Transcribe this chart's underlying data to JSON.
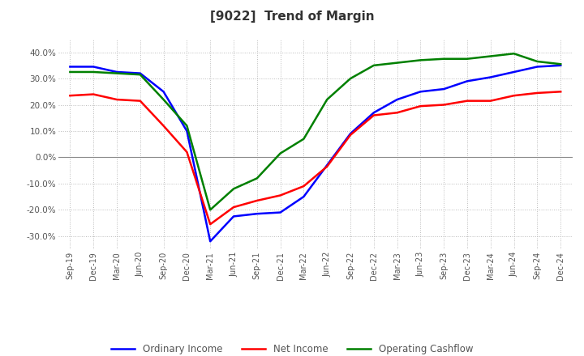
{
  "title": "[9022]  Trend of Margin",
  "x_labels": [
    "Sep-19",
    "Dec-19",
    "Mar-20",
    "Jun-20",
    "Sep-20",
    "Dec-20",
    "Mar-21",
    "Jun-21",
    "Sep-21",
    "Dec-21",
    "Mar-22",
    "Jun-22",
    "Sep-22",
    "Dec-22",
    "Mar-23",
    "Jun-23",
    "Sep-23",
    "Dec-23",
    "Mar-24",
    "Jun-24",
    "Sep-24",
    "Dec-24"
  ],
  "ordinary_income": [
    34.5,
    34.5,
    32.5,
    32.0,
    25.0,
    10.0,
    -32.0,
    -22.5,
    -21.5,
    -21.0,
    -15.0,
    -3.0,
    9.0,
    17.0,
    22.0,
    25.0,
    26.0,
    29.0,
    30.5,
    32.5,
    34.5,
    35.0
  ],
  "net_income": [
    23.5,
    24.0,
    22.0,
    21.5,
    12.0,
    2.0,
    -25.5,
    -19.0,
    -16.5,
    -14.5,
    -11.0,
    -3.5,
    8.5,
    16.0,
    17.0,
    19.5,
    20.0,
    21.5,
    21.5,
    23.5,
    24.5,
    25.0
  ],
  "operating_cashflow": [
    32.5,
    32.5,
    32.0,
    31.5,
    22.0,
    12.0,
    -20.0,
    -12.0,
    -8.0,
    1.5,
    7.0,
    22.0,
    30.0,
    35.0,
    36.0,
    37.0,
    37.5,
    37.5,
    38.5,
    39.5,
    36.5,
    35.5
  ],
  "colors": {
    "ordinary_income": "#0000FF",
    "net_income": "#FF0000",
    "operating_cashflow": "#008000"
  },
  "ylim": [
    -35,
    45
  ],
  "yticks": [
    -30,
    -20,
    -10,
    0,
    10,
    20,
    30,
    40
  ],
  "background_color": "#FFFFFF",
  "grid_color": "#BBBBBB",
  "line_width": 1.8
}
